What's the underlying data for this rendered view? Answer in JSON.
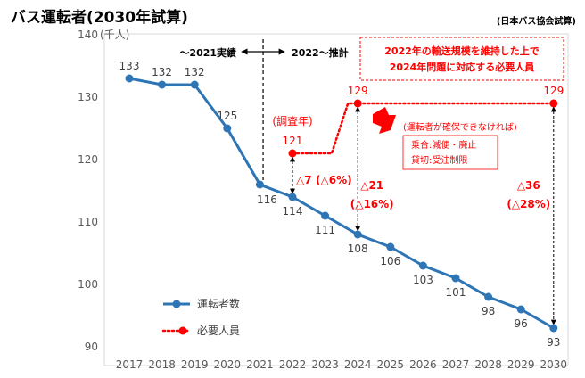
{
  "header": {
    "title": "バス運転者(2030年試算)",
    "source": "(日本バス協会試算)"
  },
  "chart_data": {
    "type": "line",
    "x": [
      2017,
      2018,
      2019,
      2020,
      2021,
      2022,
      2023,
      2024,
      2025,
      2026,
      2027,
      2028,
      2029,
      2030
    ],
    "ylim": [
      90,
      140
    ],
    "yticks": [
      90,
      100,
      110,
      120,
      130,
      140
    ],
    "ylabel": "(千人)",
    "legend_position": "bottom-left",
    "series": [
      {
        "name": "運転者数",
        "color": "#2e75b6",
        "style": "solid-with-markers",
        "values": [
          133,
          132,
          132,
          125,
          116,
          114,
          111,
          108,
          106,
          103,
          101,
          98,
          96,
          93
        ],
        "labels": [
          "133",
          "132",
          "132",
          "125",
          "116",
          "114",
          "111",
          "108",
          "106",
          "103",
          "101",
          "98",
          "96",
          "93"
        ]
      },
      {
        "name": "必要人員",
        "color": "#ff0000",
        "style": "dotted-with-markers",
        "points": [
          {
            "x": 2022,
            "y": 121,
            "label": "121"
          },
          {
            "x": 2022.5,
            "y": 121
          },
          {
            "x": 2023.2,
            "y": 121
          },
          {
            "x": 2023.7,
            "y": 129
          },
          {
            "x": 2024,
            "y": 129,
            "label": "129"
          },
          {
            "x": 2030,
            "y": 129,
            "label": "129"
          }
        ]
      }
    ],
    "period_labels": {
      "actual": "〜2021実績",
      "estimate": "2022〜推計",
      "split_year": 2021.1
    },
    "annotations": {
      "survey_year": "(調査年)",
      "box_text": [
        "2022年の輸送規模を維持した上で",
        "2024年問題に対応する必要人員"
      ],
      "if_not_secured": "(運転者が確保できなければ)",
      "consequence_box": [
        "乗合:減便・廃止",
        "貸切:受注制限"
      ],
      "gaps": [
        {
          "x": 2022,
          "from": 121,
          "to": 114,
          "line1": "△7",
          "line2": "(△6%)"
        },
        {
          "x": 2024,
          "from": 129,
          "to": 108,
          "line1": "△21",
          "line2": "(△16%)"
        },
        {
          "x": 2030,
          "from": 129,
          "to": 93,
          "line1": "△36",
          "line2": "(△28%)"
        }
      ]
    }
  }
}
